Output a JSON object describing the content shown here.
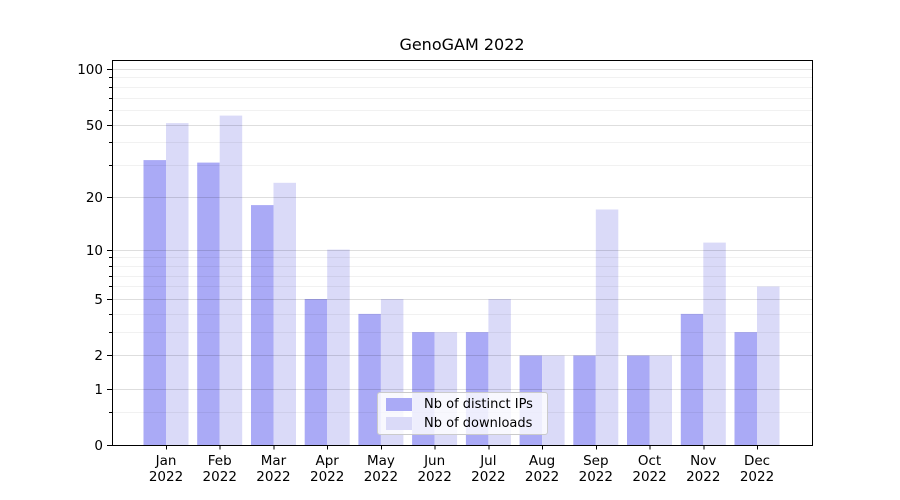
{
  "chart_data": {
    "type": "bar",
    "title": "GenoGAM 2022",
    "categories": [
      "Jan",
      "Feb",
      "Mar",
      "Apr",
      "May",
      "Jun",
      "Jul",
      "Aug",
      "Sep",
      "Oct",
      "Nov",
      "Dec"
    ],
    "year_label": "2022",
    "series": [
      {
        "name": "Nb of distinct IPs",
        "color": "#aaaaf6",
        "values": [
          32,
          31,
          18,
          5,
          4,
          3,
          3,
          2,
          2,
          2,
          4,
          3
        ]
      },
      {
        "name": "Nb of downloads",
        "color": "#dadaf8",
        "values": [
          51,
          56,
          24,
          10,
          5,
          3,
          5,
          2,
          17,
          2,
          11,
          6
        ]
      }
    ],
    "yscale": "log1p",
    "ylim": [
      0,
      112
    ],
    "yticks_major": [
      0,
      1,
      2,
      5,
      10,
      20,
      50,
      100
    ],
    "yticks_minor": [
      0.5,
      3,
      4,
      6,
      7,
      8,
      9,
      30,
      40,
      60,
      70,
      80,
      90
    ],
    "grid": true,
    "legend_position": "lower center"
  },
  "colors": {
    "background": "#ffffff",
    "axis": "#000000",
    "grid_major": "rgba(0,0,0,0.13)",
    "grid_minor": "rgba(0,0,0,0.055)",
    "legend_border": "#cbcbcb",
    "legend_bg": "rgba(255,255,255,0.8)"
  }
}
